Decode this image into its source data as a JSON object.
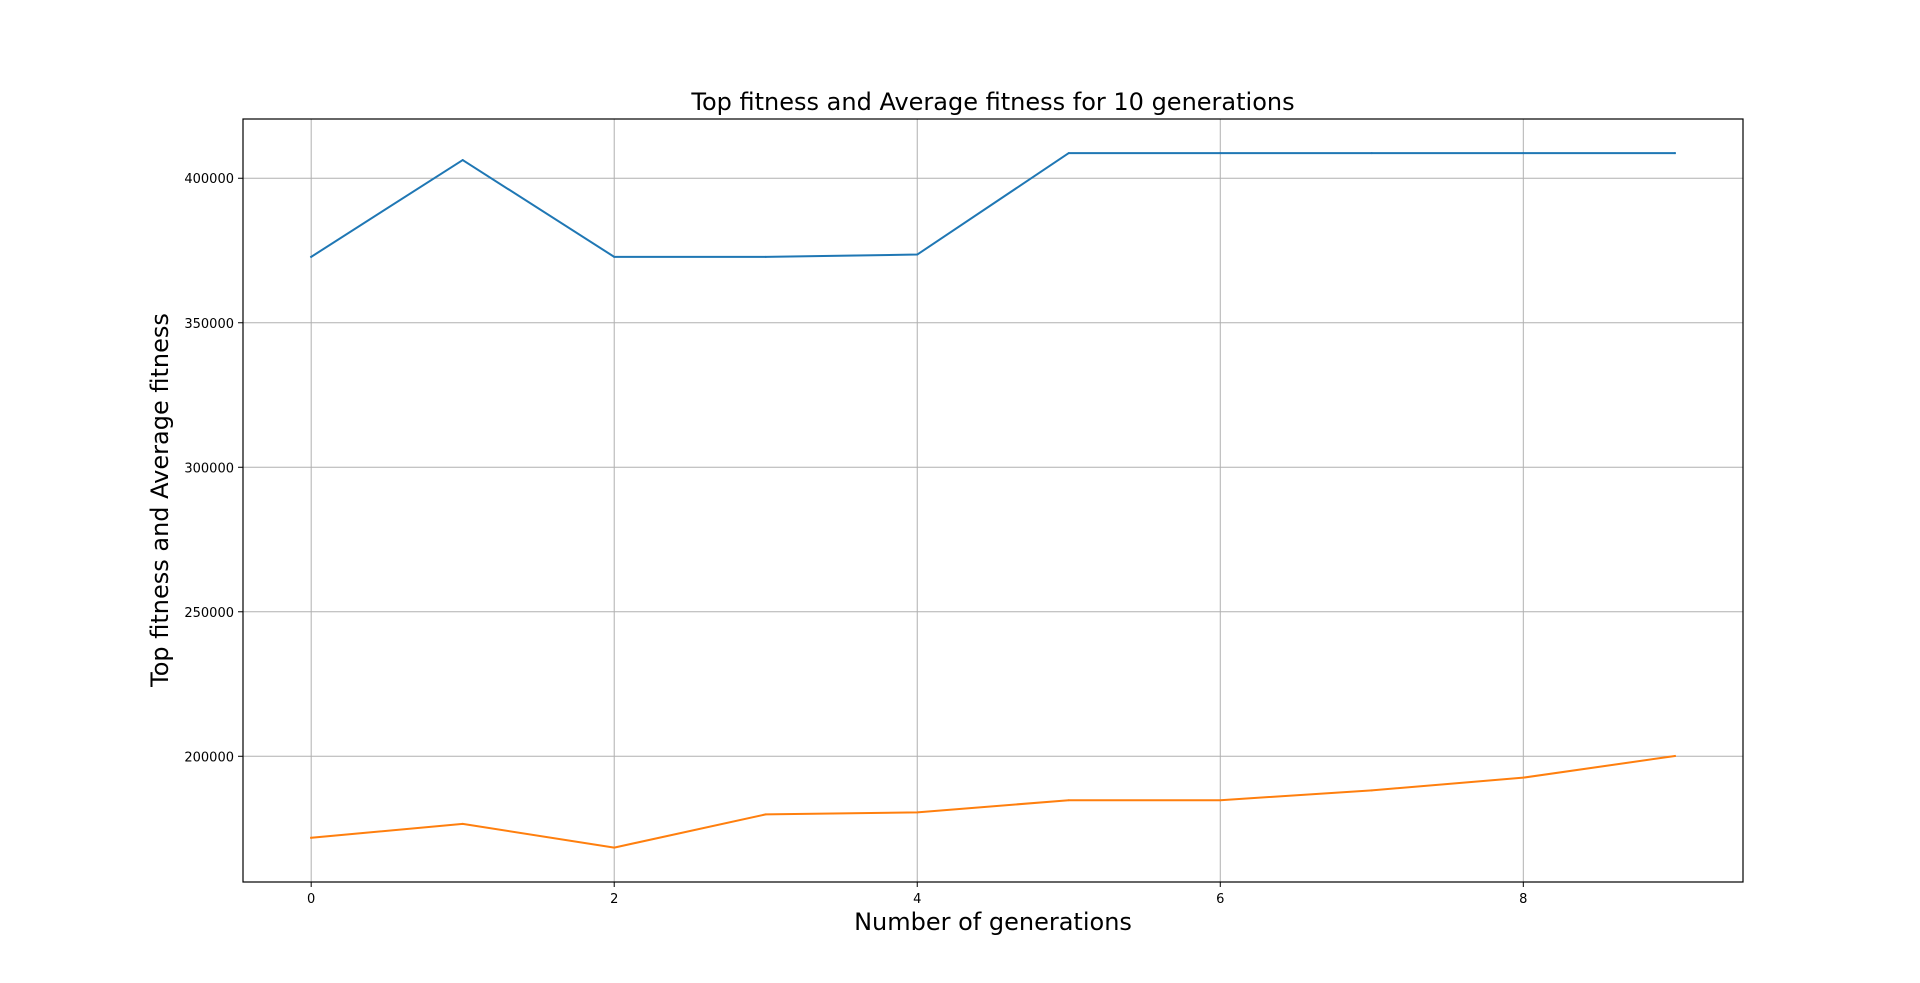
{
  "chart_data": {
    "type": "line",
    "title": "Top fitness and Average fitness for 10 generations",
    "xlabel": "Number of generations",
    "ylabel": "Top fitness and Average fitness",
    "x": [
      0,
      1,
      2,
      3,
      4,
      5,
      6,
      7,
      8,
      9
    ],
    "xlim": [
      -0.45,
      9.45
    ],
    "ylim": [
      156500,
      420500
    ],
    "xticks": [
      0,
      2,
      4,
      6,
      8
    ],
    "yticks": [
      200000,
      250000,
      300000,
      350000,
      400000
    ],
    "grid": true,
    "series": [
      {
        "color": "#1f77b4",
        "values": [
          372800,
          406300,
          372800,
          372800,
          373600,
          408700,
          408700,
          408700,
          408700,
          408700
        ]
      },
      {
        "color": "#ff7f0e",
        "values": [
          171800,
          176600,
          168400,
          179900,
          180600,
          184800,
          184800,
          188200,
          192600,
          200100
        ]
      }
    ]
  }
}
